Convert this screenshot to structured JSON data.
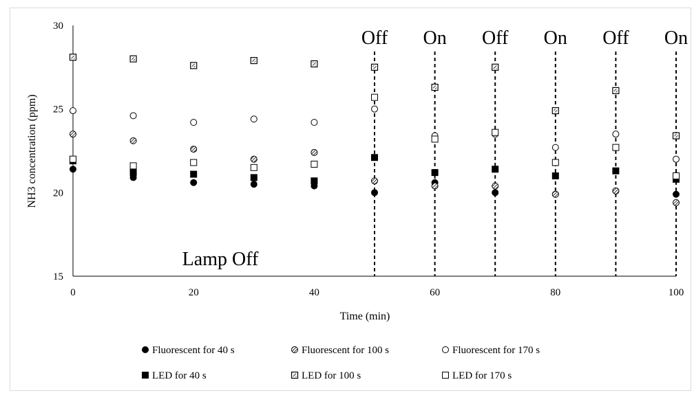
{
  "chart_data": {
    "type": "scatter",
    "title": "",
    "xlabel": "Time (min)",
    "ylabel": "NH3 concentration (ppm)",
    "xlim": [
      0,
      100
    ],
    "ylim": [
      15,
      30
    ],
    "x_ticks": [
      "0",
      "20",
      "40",
      "60",
      "80",
      "100"
    ],
    "y_ticks": [
      "15",
      "20",
      "25",
      "30"
    ],
    "grid": false,
    "legend": "bottom",
    "x": [
      0,
      10,
      20,
      30,
      40,
      50,
      60,
      70,
      80,
      90,
      100
    ],
    "series": [
      {
        "name": "Fluorescent for 40 s",
        "marker": "filled-circle",
        "values": [
          21.4,
          20.9,
          20.6,
          20.5,
          20.4,
          20.0,
          20.6,
          20.0,
          19.9,
          20.1,
          19.9
        ]
      },
      {
        "name": "Fluorescent for 100 s",
        "marker": "hatched-circle",
        "values": [
          23.5,
          23.1,
          22.6,
          22.0,
          22.4,
          20.7,
          20.4,
          20.4,
          19.9,
          20.1,
          19.4
        ]
      },
      {
        "name": "Fluorescent for 170 s",
        "marker": "open-circle",
        "values": [
          24.9,
          24.6,
          24.2,
          24.4,
          24.2,
          25.0,
          23.4,
          23.5,
          22.7,
          23.5,
          22.0
        ]
      },
      {
        "name": "LED for 40 s",
        "marker": "filled-square",
        "values": [
          21.9,
          21.2,
          21.1,
          20.9,
          20.7,
          22.1,
          21.2,
          21.4,
          21.0,
          21.3,
          20.8
        ]
      },
      {
        "name": "LED for 100 s",
        "marker": "hatched-square",
        "values": [
          28.1,
          28.0,
          27.6,
          27.9,
          27.7,
          27.5,
          26.3,
          27.5,
          24.9,
          26.1,
          23.4
        ]
      },
      {
        "name": "LED for 170 s",
        "marker": "open-square",
        "values": [
          22.0,
          21.6,
          21.8,
          21.5,
          21.7,
          25.7,
          23.2,
          23.6,
          21.8,
          22.7,
          21.0
        ]
      }
    ],
    "annotations": {
      "lamp_off": {
        "text": "Lamp Off"
      },
      "switch_lines": [
        {
          "x": 50,
          "label": "Off"
        },
        {
          "x": 60,
          "label": "On"
        },
        {
          "x": 70,
          "label": "Off"
        },
        {
          "x": 80,
          "label": "On"
        },
        {
          "x": 90,
          "label": "Off"
        },
        {
          "x": 100,
          "label": "On"
        }
      ]
    }
  }
}
